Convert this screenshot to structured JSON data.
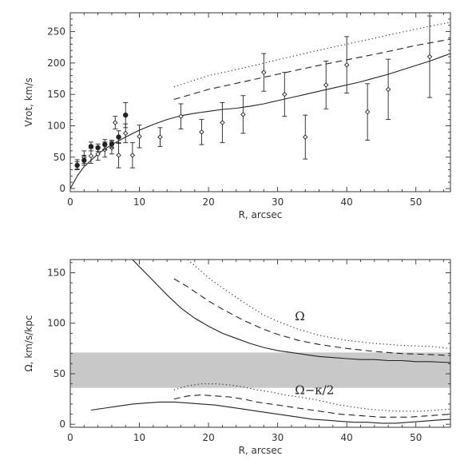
{
  "chart_data": [
    {
      "type": "scatter",
      "xlabel": "R, arcsec",
      "ylabel": "Vrot, km/s",
      "xlim": [
        0,
        55
      ],
      "ylim": [
        -5,
        280
      ],
      "xticks": [
        0,
        10,
        20,
        30,
        40,
        50
      ],
      "yticks": [
        0,
        50,
        100,
        150,
        200,
        250
      ],
      "grid": false,
      "colors": {
        "axis": "#333333",
        "data": "#222222"
      },
      "filled_points": {
        "x": [
          1,
          2,
          3,
          4,
          5,
          6,
          7,
          8
        ],
        "y": [
          37,
          45,
          67,
          65,
          70,
          71,
          82,
          117
        ],
        "err": [
          6,
          8,
          7,
          6,
          8,
          6,
          10,
          20
        ]
      },
      "open_points": {
        "x": [
          1,
          2,
          3,
          4,
          5,
          6,
          6.5,
          7,
          8,
          9,
          10,
          13,
          16,
          19,
          22,
          25,
          28,
          31,
          34,
          37,
          40,
          43,
          46,
          52
        ],
        "y": [
          38,
          50,
          52,
          55,
          62,
          65,
          105,
          53,
          88,
          53,
          83,
          82,
          115,
          90,
          105,
          118,
          185,
          150,
          82,
          165,
          197,
          122,
          158,
          210
        ],
        "err": [
          8,
          10,
          12,
          10,
          12,
          10,
          10,
          20,
          15,
          20,
          18,
          15,
          20,
          20,
          32,
          30,
          30,
          35,
          35,
          38,
          45,
          45,
          48,
          65
        ]
      },
      "series": [
        {
          "style": "solid",
          "x": [
            0,
            1,
            2,
            3,
            4,
            5,
            6,
            7,
            8,
            10,
            12,
            14,
            16,
            18,
            20,
            22,
            24,
            26,
            28,
            30,
            32,
            34,
            36,
            38,
            40,
            42,
            44,
            46,
            48,
            50,
            52,
            54,
            55
          ],
          "y": [
            0,
            20,
            35,
            45,
            55,
            63,
            70,
            76,
            82,
            93,
            102,
            110,
            116,
            120,
            123,
            126,
            128,
            131,
            135,
            140,
            145,
            150,
            155,
            160,
            165,
            170,
            176,
            182,
            189,
            196,
            203,
            211,
            215
          ]
        },
        {
          "style": "dashed",
          "x": [
            15,
            20,
            25,
            30,
            35,
            40,
            45,
            50,
            55
          ],
          "y": [
            142,
            158,
            170,
            182,
            194,
            205,
            216,
            228,
            238
          ]
        },
        {
          "style": "dotted",
          "x": [
            15,
            20,
            25,
            30,
            35,
            40,
            45,
            50,
            55
          ],
          "y": [
            162,
            180,
            192,
            205,
            218,
            230,
            242,
            254,
            265
          ]
        }
      ]
    },
    {
      "type": "line",
      "xlabel": "R, arcsec",
      "ylabel": "Ω, km/s/kpc",
      "xlim": [
        0,
        55
      ],
      "ylim": [
        -3,
        163
      ],
      "xticks": [
        0,
        10,
        20,
        30,
        40,
        50
      ],
      "yticks": [
        0,
        50,
        100,
        150
      ],
      "grid": false,
      "band": {
        "y0": 36,
        "y1": 71,
        "color": "#c8c8c8"
      },
      "annotations": [
        {
          "text": "Ω",
          "x": 32.5,
          "y": 103
        },
        {
          "text": "Ω−κ/2",
          "x": 32.5,
          "y": 30
        }
      ],
      "series": [
        {
          "style": "solid",
          "x": [
            9,
            10,
            12,
            14,
            16,
            18,
            20,
            22,
            24,
            26,
            28,
            30,
            32,
            34,
            36,
            38,
            40,
            42,
            44,
            46,
            48,
            50,
            52,
            55
          ],
          "y": [
            163,
            156,
            142,
            128,
            115,
            105,
            97,
            90,
            85,
            80,
            76,
            73,
            71,
            69,
            67,
            66,
            65,
            64,
            64,
            63,
            63,
            62,
            62,
            61
          ]
        },
        {
          "style": "dashed",
          "x": [
            15,
            17,
            20,
            22,
            25,
            28,
            30,
            33,
            36,
            40,
            44,
            48,
            52,
            55
          ],
          "y": [
            144,
            136,
            122,
            114,
            103,
            94,
            89,
            83,
            79,
            75,
            72,
            70,
            69,
            68
          ]
        },
        {
          "style": "dotted",
          "x": [
            17,
            18,
            20,
            22,
            25,
            28,
            30,
            33,
            36,
            40,
            44,
            48,
            52,
            55
          ],
          "y": [
            163,
            157,
            145,
            135,
            121,
            108,
            102,
            94,
            88,
            83,
            80,
            78,
            77,
            75
          ]
        },
        {
          "style": "solid",
          "x": [
            3,
            5,
            7,
            9,
            11,
            13,
            15,
            17,
            19,
            21,
            23,
            25,
            27,
            29,
            31,
            33,
            35,
            37,
            39,
            41,
            43,
            45,
            47,
            49,
            51,
            53,
            55
          ],
          "y": [
            14,
            16,
            18,
            20,
            21,
            22,
            22,
            21,
            20,
            19,
            17,
            15,
            13,
            11,
            9,
            7,
            5,
            4,
            3,
            2,
            2,
            1,
            1,
            2,
            3,
            4,
            5
          ]
        },
        {
          "style": "dashed",
          "x": [
            15,
            17,
            19,
            21,
            23,
            25,
            27,
            29,
            31,
            33,
            35,
            37,
            39,
            41,
            43,
            45,
            47,
            49,
            51,
            53,
            55
          ],
          "y": [
            25,
            28,
            29,
            28,
            27,
            25,
            22,
            20,
            18,
            16,
            14,
            12,
            10,
            9,
            8,
            7,
            7,
            7,
            8,
            9,
            10
          ]
        },
        {
          "style": "dotted",
          "x": [
            15,
            17,
            19,
            21,
            23,
            25,
            27,
            29,
            31,
            33,
            35,
            37,
            39,
            41,
            43,
            45,
            47,
            49,
            51,
            53,
            55
          ],
          "y": [
            34,
            38,
            40,
            40,
            39,
            37,
            34,
            32,
            29,
            27,
            25,
            22,
            19,
            17,
            15,
            14,
            13,
            13,
            13,
            14,
            15
          ]
        }
      ]
    }
  ]
}
